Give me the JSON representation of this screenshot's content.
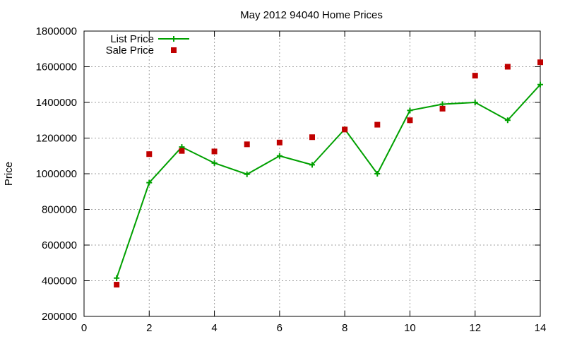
{
  "chart_data": {
    "type": "line",
    "title": "May 2012 94040 Home Prices",
    "xlabel": "",
    "ylabel": "Price",
    "xlim": [
      0,
      14
    ],
    "ylim": [
      200000,
      1800000
    ],
    "xticks": [
      "0",
      "2",
      "4",
      "6",
      "8",
      "10",
      "12",
      "14"
    ],
    "yticks": [
      "200000",
      "400000",
      "600000",
      "800000",
      "1000000",
      "1200000",
      "1400000",
      "1600000",
      "1800000"
    ],
    "grid": true,
    "legend_position": "top-left",
    "series": [
      {
        "name": "List Price",
        "style": "line-with-plus-markers",
        "color": "#00a000",
        "x": [
          1,
          2,
          3,
          4,
          5,
          6,
          7,
          8,
          9,
          10,
          11,
          12,
          13,
          14
        ],
        "y": [
          415000,
          950000,
          1150000,
          1060000,
          997000,
          1100000,
          1050000,
          1250000,
          1000000,
          1355000,
          1390000,
          1400000,
          1300000,
          1500000
        ]
      },
      {
        "name": "Sale Price",
        "style": "square-markers",
        "color": "#c00000",
        "x": [
          1,
          2,
          3,
          4,
          5,
          6,
          7,
          8,
          9,
          10,
          11,
          12,
          13,
          14
        ],
        "y": [
          378000,
          1110000,
          1128000,
          1125000,
          1165000,
          1175000,
          1205000,
          1248000,
          1275000,
          1300000,
          1365000,
          1550000,
          1600000,
          1625000
        ]
      }
    ]
  }
}
